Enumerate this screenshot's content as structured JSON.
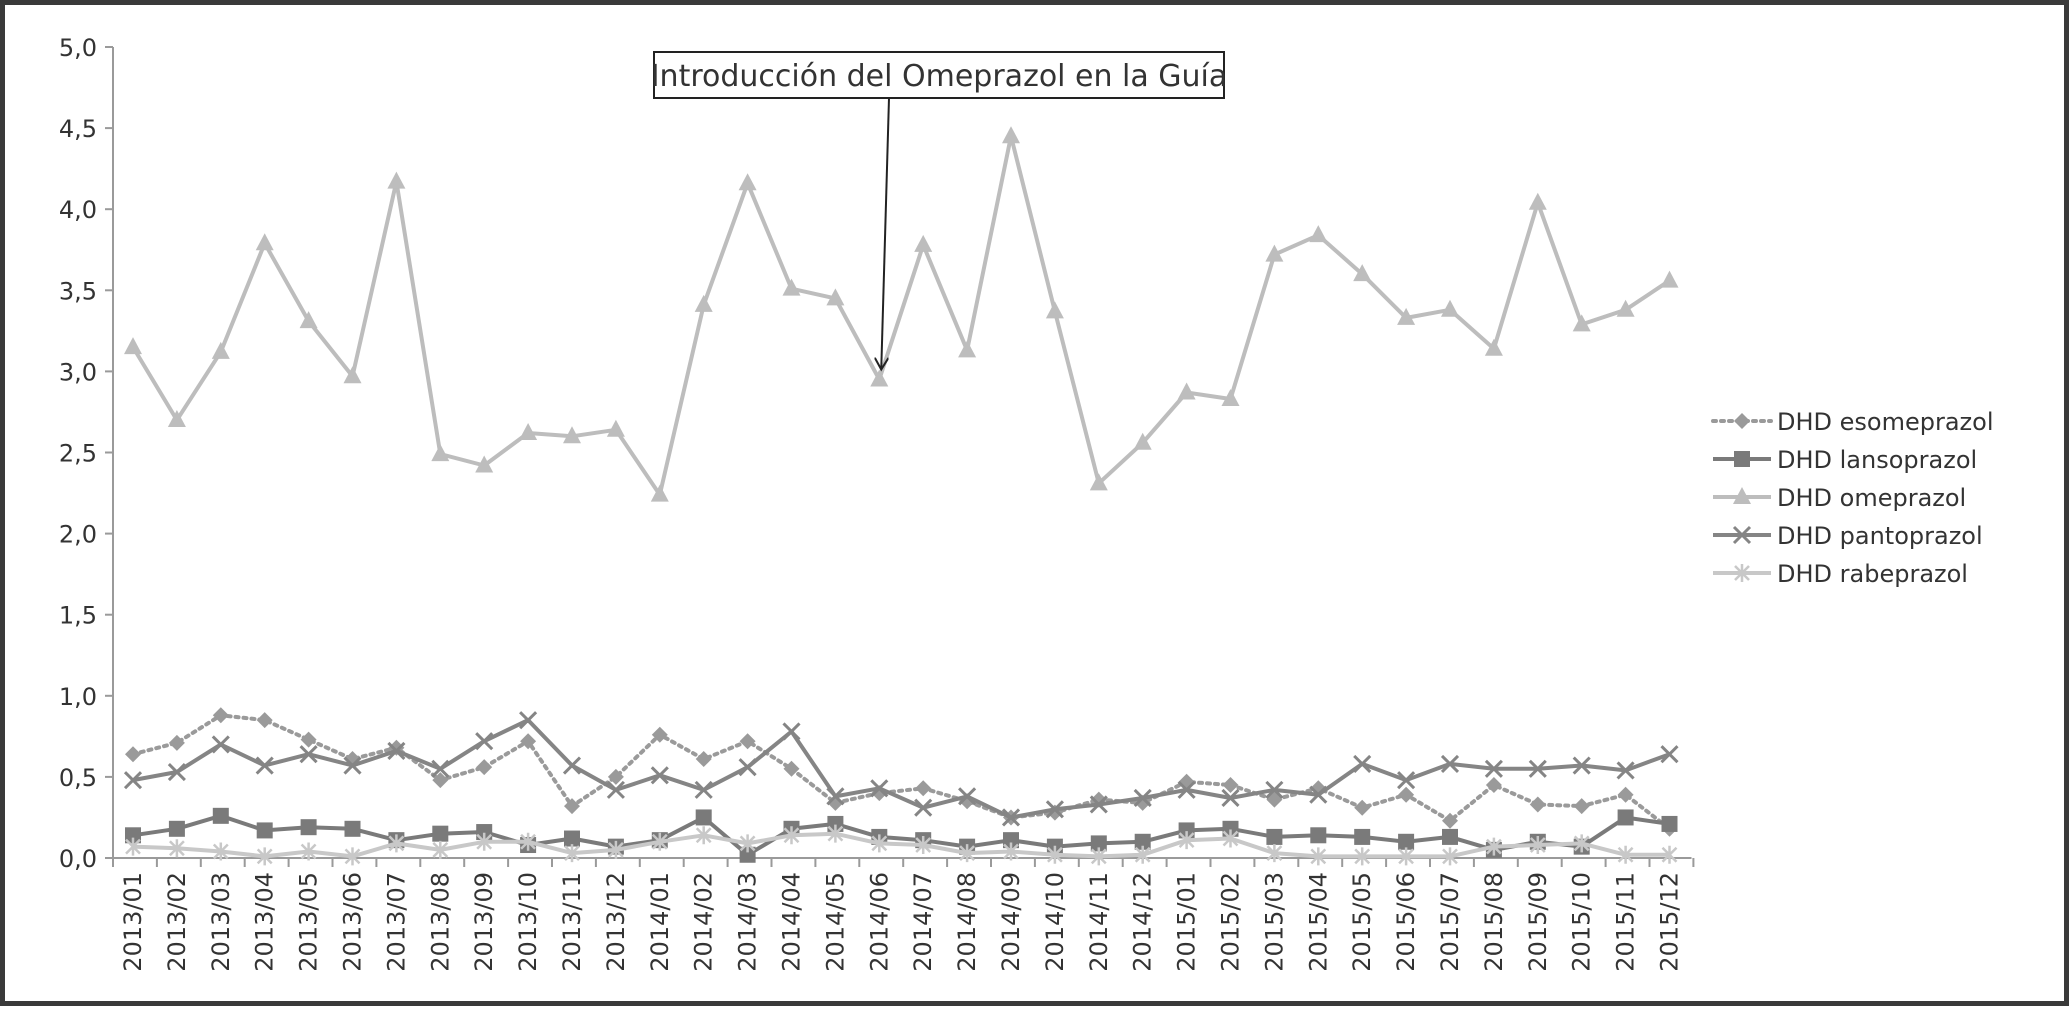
{
  "chart_data": {
    "type": "line",
    "title": "",
    "xlabel": "",
    "ylabel": "",
    "ylim": [
      0,
      5
    ],
    "yticks": [
      "0,0",
      "0,5",
      "1,0",
      "1,5",
      "2,0",
      "2,5",
      "3,0",
      "3,5",
      "4,0",
      "4,5",
      "5,0"
    ],
    "categories": [
      "2013/01",
      "2013/02",
      "2013/03",
      "2013/04",
      "2013/05",
      "2013/06",
      "2013/07",
      "2013/08",
      "2013/09",
      "2013/10",
      "2013/11",
      "2013/12",
      "2014/01",
      "2014/02",
      "2014/03",
      "2014/04",
      "2014/05",
      "2014/06",
      "2014/07",
      "2014/08",
      "2014/09",
      "2014/10",
      "2014/11",
      "2014/12",
      "2015/01",
      "2015/02",
      "2015/03",
      "2015/04",
      "2015/05",
      "2015/06",
      "2015/07",
      "2015/08",
      "2015/09",
      "2015/10",
      "2015/11",
      "2015/12"
    ],
    "grid": false,
    "legend_position": "right",
    "series": [
      {
        "name": "DHD esomeprazol",
        "color": "#9a9a9a",
        "marker": "diamond",
        "dash": true,
        "values": [
          0.64,
          0.71,
          0.88,
          0.85,
          0.73,
          0.61,
          0.68,
          0.48,
          0.56,
          0.72,
          0.32,
          0.5,
          0.76,
          0.61,
          0.72,
          0.55,
          0.34,
          0.4,
          0.43,
          0.35,
          0.25,
          0.28,
          0.36,
          0.34,
          0.47,
          0.45,
          0.36,
          0.43,
          0.31,
          0.39,
          0.23,
          0.45,
          0.33,
          0.32,
          0.39,
          0.18
        ]
      },
      {
        "name": "DHD lansoprazol",
        "color": "#7a7a7a",
        "marker": "square",
        "dash": false,
        "values": [
          0.14,
          0.18,
          0.26,
          0.17,
          0.19,
          0.18,
          0.11,
          0.15,
          0.16,
          0.08,
          0.12,
          0.07,
          0.11,
          0.25,
          0.02,
          0.18,
          0.21,
          0.13,
          0.11,
          0.07,
          0.11,
          0.07,
          0.09,
          0.1,
          0.17,
          0.18,
          0.13,
          0.14,
          0.13,
          0.1,
          0.13,
          0.05,
          0.1,
          0.07,
          0.25,
          0.21
        ]
      },
      {
        "name": "DHD omeprazol",
        "color": "#bdbdbd",
        "marker": "triangle",
        "dash": false,
        "values": [
          3.15,
          2.7,
          3.12,
          3.79,
          3.31,
          2.97,
          4.17,
          2.49,
          2.42,
          2.62,
          2.6,
          2.64,
          2.24,
          3.41,
          4.16,
          3.51,
          3.45,
          2.95,
          3.78,
          3.13,
          4.45,
          3.37,
          2.31,
          2.56,
          2.87,
          2.83,
          3.72,
          3.84,
          3.6,
          3.33,
          3.38,
          3.14,
          4.04,
          3.29,
          3.38,
          3.56
        ]
      },
      {
        "name": "DHD pantoprazol",
        "color": "#858585",
        "marker": "x",
        "dash": false,
        "values": [
          0.48,
          0.53,
          0.7,
          0.57,
          0.64,
          0.57,
          0.66,
          0.55,
          0.72,
          0.85,
          0.57,
          0.42,
          0.51,
          0.42,
          0.56,
          0.78,
          0.38,
          0.43,
          0.31,
          0.38,
          0.25,
          0.3,
          0.33,
          0.37,
          0.42,
          0.37,
          0.42,
          0.39,
          0.58,
          0.48,
          0.58,
          0.55,
          0.55,
          0.57,
          0.54,
          0.64
        ]
      },
      {
        "name": "DHD rabeprazol",
        "color": "#c8c8c8",
        "marker": "star",
        "dash": false,
        "values": [
          0.07,
          0.06,
          0.04,
          0.01,
          0.04,
          0.01,
          0.09,
          0.05,
          0.1,
          0.1,
          0.03,
          0.05,
          0.1,
          0.14,
          0.09,
          0.14,
          0.15,
          0.09,
          0.08,
          0.03,
          0.04,
          0.02,
          0.01,
          0.02,
          0.11,
          0.12,
          0.03,
          0.01,
          0.01,
          0.01,
          0.01,
          0.07,
          0.08,
          0.09,
          0.02,
          0.02
        ]
      }
    ],
    "annotations": [
      {
        "text": "Introducción del Omeprazol en la Guía",
        "points_to": "2014/06"
      }
    ]
  }
}
